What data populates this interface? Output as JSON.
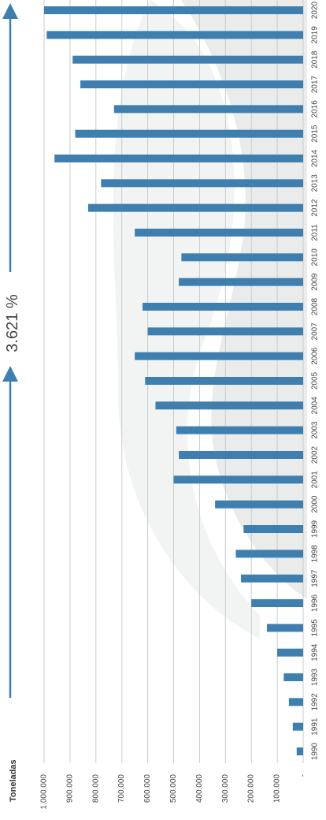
{
  "chart_data": {
    "type": "bar",
    "orientation": "rotated",
    "ylabel": "Toneladas",
    "ylim": [
      0,
      1000000
    ],
    "y_ticks": [
      "-",
      "100.000",
      "200.000",
      "300.000",
      "400.000",
      "500.000",
      "600.000",
      "700.000",
      "800.000",
      "900.000",
      "1.000.000"
    ],
    "categories": [
      "1990",
      "1991",
      "1992",
      "1993",
      "1994",
      "1995",
      "1996",
      "1997",
      "1998",
      "1999",
      "2000",
      "2001",
      "2002",
      "2003",
      "2004",
      "2005",
      "2006",
      "2007",
      "2008",
      "2009",
      "2010",
      "2011",
      "2012",
      "2013",
      "2014",
      "2015",
      "2016",
      "2017",
      "2018",
      "2019",
      "2020"
    ],
    "values": [
      25000,
      40000,
      55000,
      75000,
      100000,
      140000,
      200000,
      240000,
      260000,
      230000,
      340000,
      500000,
      480000,
      490000,
      570000,
      610000,
      650000,
      600000,
      620000,
      480000,
      470000,
      650000,
      830000,
      780000,
      960000,
      880000,
      730000,
      860000,
      890000,
      990000,
      1000000
    ],
    "bar_color": "#3f7fb0",
    "annotation": "3.621 %",
    "grid": true
  }
}
